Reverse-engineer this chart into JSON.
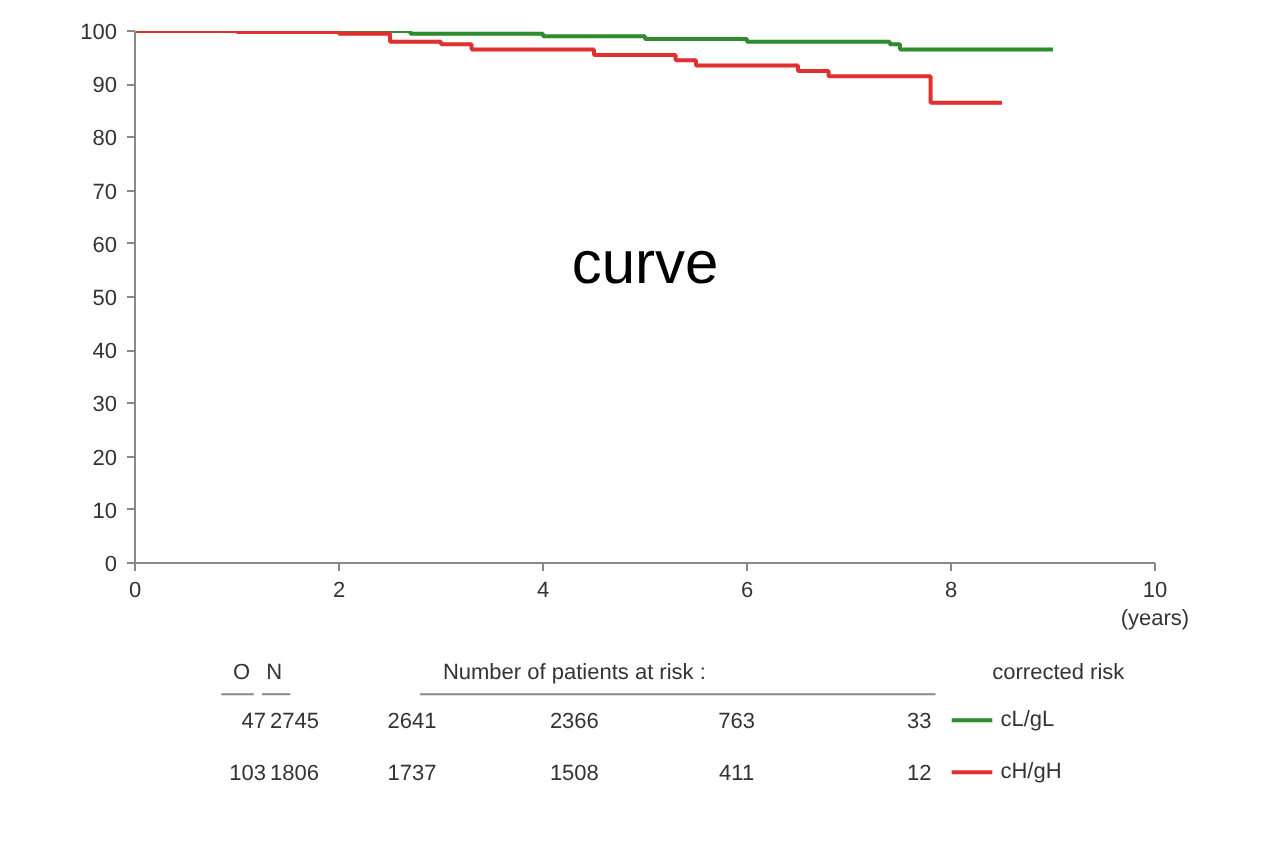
{
  "chart_data": {
    "type": "step",
    "xlabel": "(years)",
    "legend_title": "corrected risk",
    "legend": "bottom right",
    "xlim": [
      0,
      10
    ],
    "xticks": [
      0,
      2,
      4,
      6,
      8,
      10
    ],
    "ylim": [
      0,
      100
    ],
    "yticks": [
      0,
      10,
      20,
      30,
      40,
      50,
      60,
      70,
      80,
      90,
      100
    ],
    "grid": false,
    "series": [
      {
        "name": "cL/gL",
        "color": "#2e8b2e",
        "x": [
          0,
          2,
          2.7,
          4,
          5,
          6,
          7.4,
          7.5,
          9
        ],
        "values": [
          100,
          100,
          99.5,
          99,
          98.5,
          98,
          97.5,
          96.5,
          96.5
        ]
      },
      {
        "name": "cH/gH",
        "color": "#e03030",
        "x": [
          0,
          1,
          2,
          2.5,
          3,
          3.3,
          4.5,
          5.3,
          5.5,
          6.5,
          6.8,
          7.8,
          8.5
        ],
        "values": [
          100,
          99.8,
          99.5,
          98,
          97.5,
          96.5,
          95.5,
          94.5,
          93.5,
          92.5,
          91.5,
          86.5,
          86.5
        ]
      }
    ],
    "annotations": [
      "curve",
      "O",
      "N",
      "Number of patients at risk :",
      "47",
      "2745",
      "2641",
      "2366",
      "763",
      "33",
      "103",
      "1806",
      "1737",
      "1508",
      "411",
      "12"
    ]
  }
}
